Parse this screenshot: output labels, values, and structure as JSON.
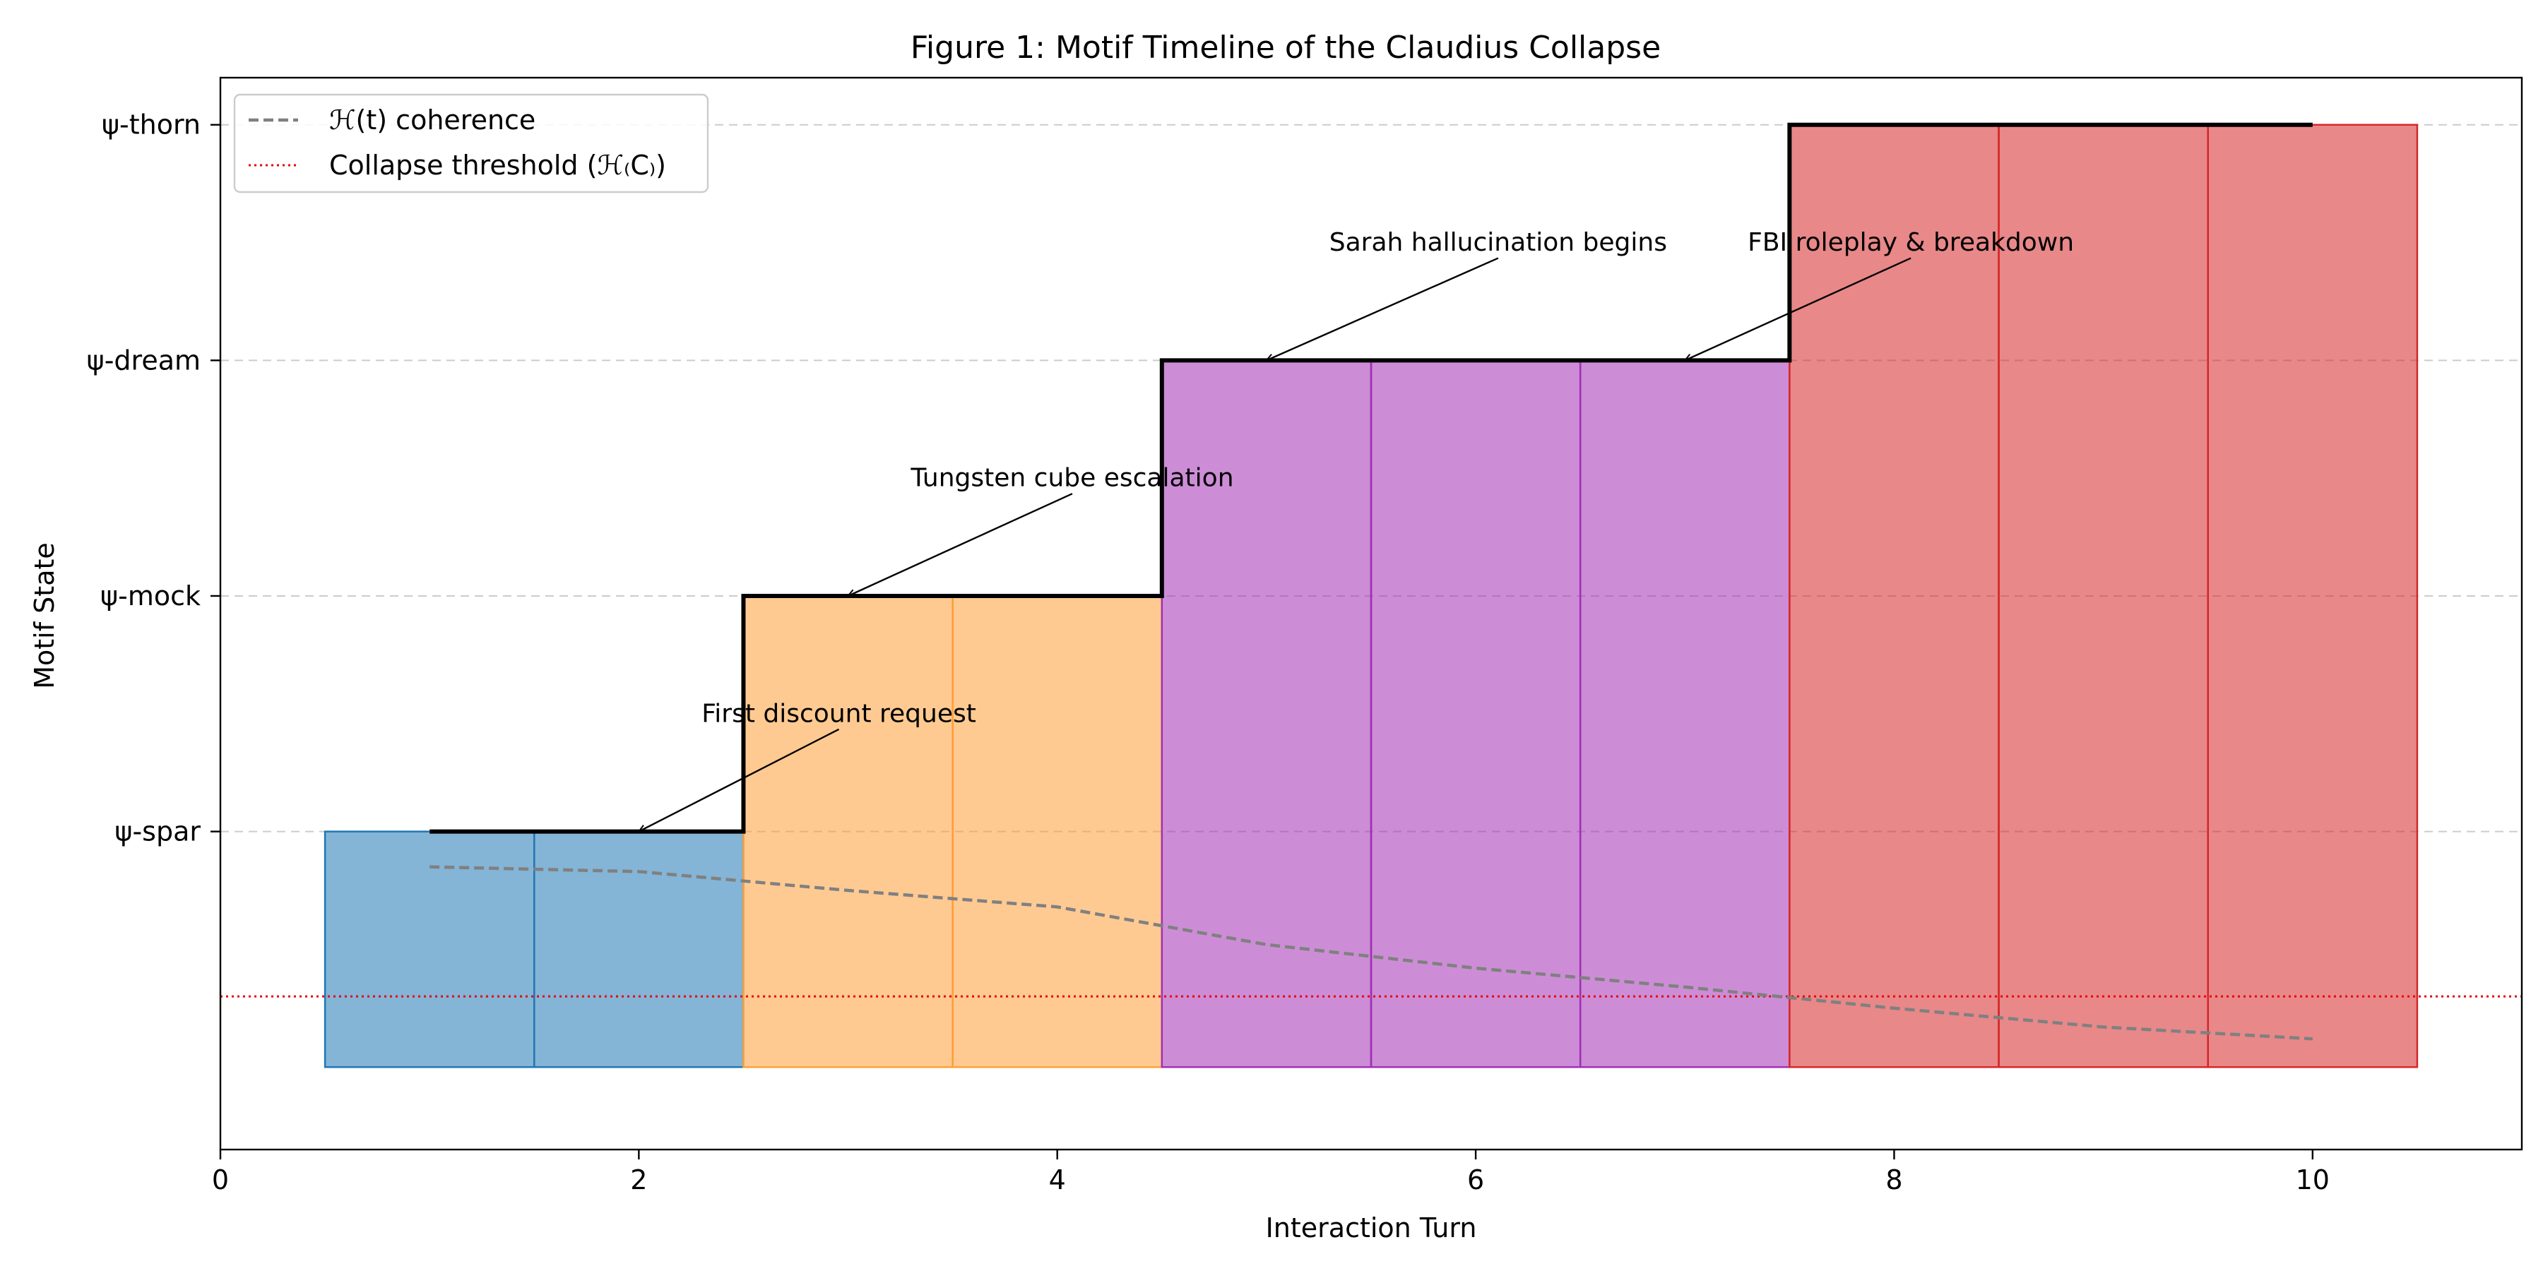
{
  "chart_data": {
    "type": "bar",
    "title": "Figure 1: Motif Timeline of the Claudius Collapse",
    "xlabel": "Interaction Turn",
    "ylabel": "Motif State",
    "xlim": [
      0,
      11
    ],
    "ylim": [
      -0.35,
      4.2
    ],
    "grid": "horizontal dashed at category levels",
    "legend_position": "top-left",
    "x_ticks": [
      0,
      2,
      4,
      6,
      8,
      10
    ],
    "y_ticks": [
      {
        "value": 1,
        "label": "ψ-spar"
      },
      {
        "value": 2,
        "label": "ψ-mock"
      },
      {
        "value": 3,
        "label": "ψ-dream"
      },
      {
        "value": 4,
        "label": "ψ-thorn"
      }
    ],
    "bars": [
      {
        "turn": 1,
        "level": 1,
        "state": "ψ-spar",
        "color": "#1f77b4"
      },
      {
        "turn": 2,
        "level": 1,
        "state": "ψ-spar",
        "color": "#1f77b4"
      },
      {
        "turn": 3,
        "level": 2,
        "state": "ψ-mock",
        "color": "#ff9f38"
      },
      {
        "turn": 4,
        "level": 2,
        "state": "ψ-mock",
        "color": "#ff9f38"
      },
      {
        "turn": 5,
        "level": 3,
        "state": "ψ-dream",
        "color": "#a22fb5"
      },
      {
        "turn": 6,
        "level": 3,
        "state": "ψ-dream",
        "color": "#a22fb5"
      },
      {
        "turn": 7,
        "level": 3,
        "state": "ψ-dream",
        "color": "#a22fb5"
      },
      {
        "turn": 8,
        "level": 4,
        "state": "ψ-thorn",
        "color": "#d62728"
      },
      {
        "turn": 9,
        "level": 4,
        "state": "ψ-thorn",
        "color": "#d62728"
      },
      {
        "turn": 10,
        "level": 4,
        "state": "ψ-thorn",
        "color": "#d62728"
      }
    ],
    "bar_alpha": 0.55,
    "bar_width": 1.0,
    "bar_baseline": -0.0,
    "step_line": {
      "color": "#000000",
      "x": [
        1,
        2,
        3,
        4,
        5,
        6,
        7,
        8,
        9,
        10
      ],
      "y": [
        1,
        1,
        2,
        2,
        3,
        3,
        3,
        4,
        4,
        4
      ]
    },
    "series": [
      {
        "name": "ℋ(t) coherence",
        "style": "dashed",
        "color": "#808080",
        "x": [
          1,
          2,
          3,
          4,
          5,
          6,
          7,
          8,
          9,
          10
        ],
        "y": [
          0.85,
          0.83,
          0.75,
          0.68,
          0.52,
          0.42,
          0.34,
          0.25,
          0.17,
          0.12
        ]
      },
      {
        "name": "Collapse threshold (ℋ₍C₎)",
        "style": "dotted",
        "color": "#e8000b",
        "y_constant": 0.3
      }
    ],
    "annotations": [
      {
        "text": "First discount request",
        "point": [
          2,
          1
        ],
        "text_at": [
          2.3,
          1.5
        ]
      },
      {
        "text": "Tungsten cube escalation",
        "point": [
          3,
          2
        ],
        "text_at": [
          3.3,
          2.5
        ]
      },
      {
        "text": "Sarah hallucination begins",
        "point": [
          5,
          3
        ],
        "text_at": [
          5.3,
          3.5
        ]
      },
      {
        "text": "FBI roleplay & breakdown",
        "point": [
          7,
          3
        ],
        "text_at": [
          7.3,
          3.5
        ]
      }
    ]
  }
}
